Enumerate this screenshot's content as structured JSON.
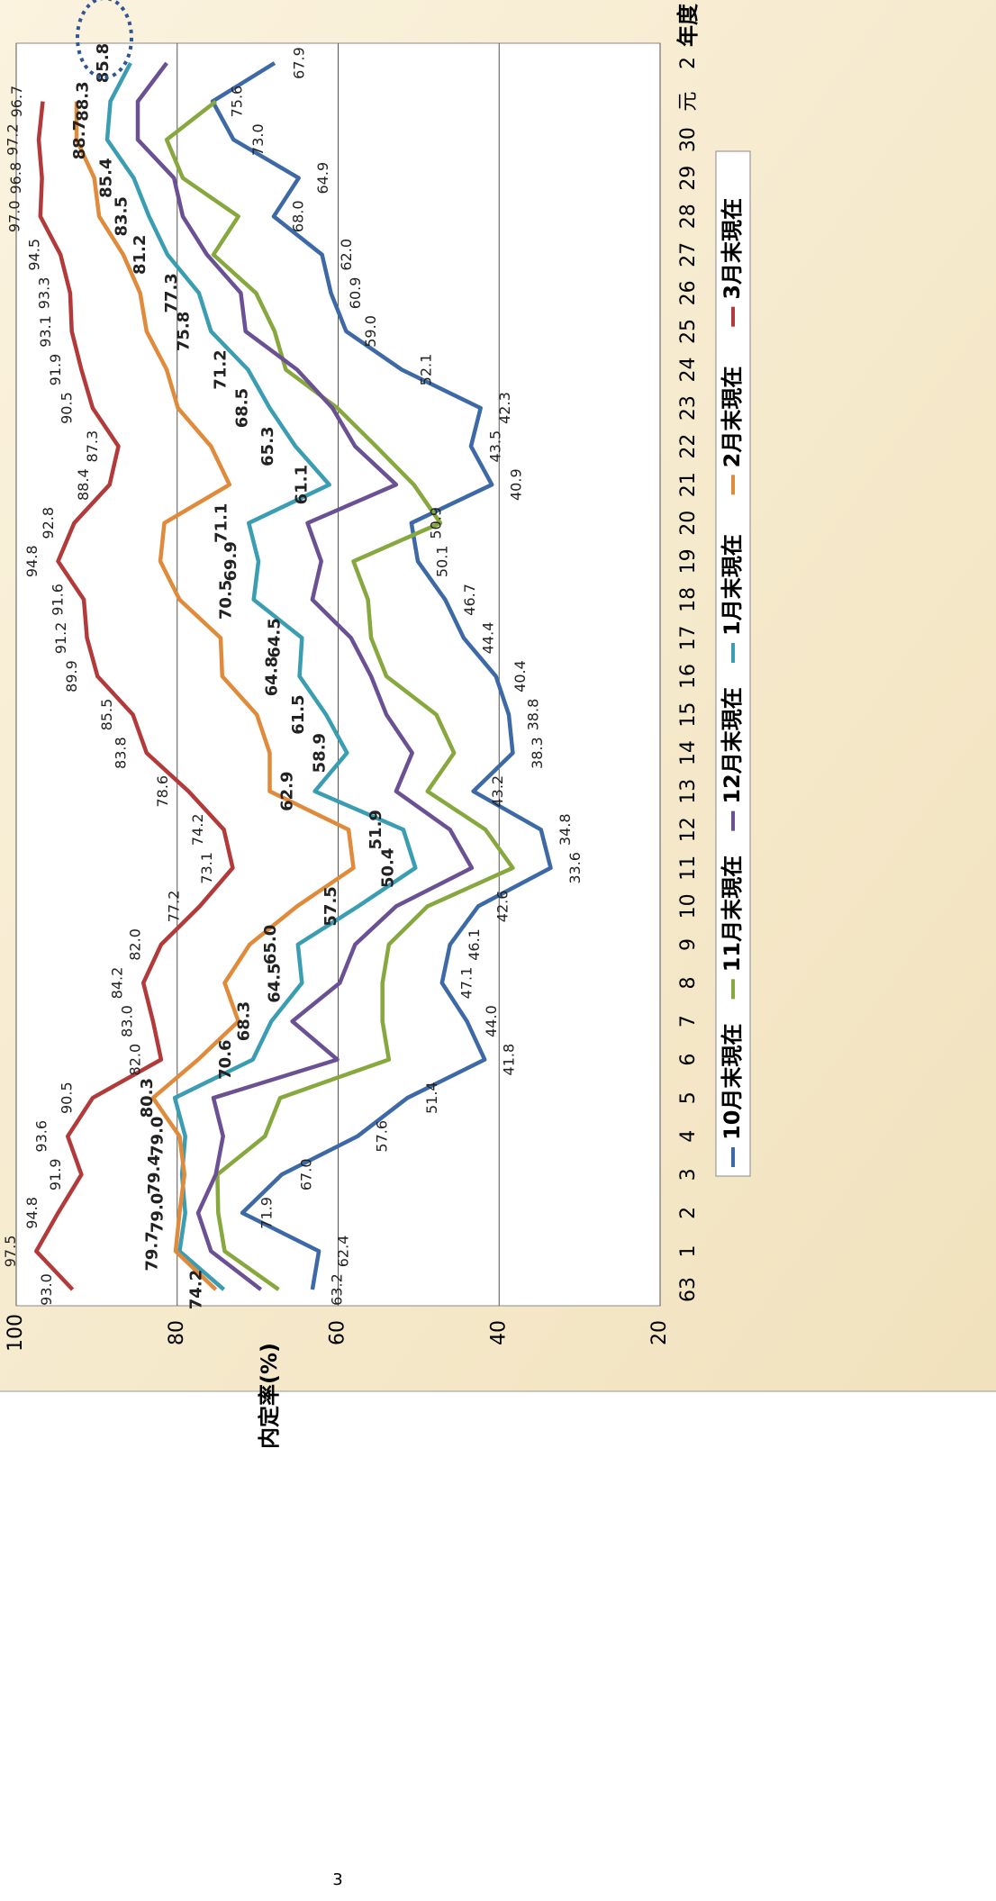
{
  "chart_data": {
    "type": "line",
    "y_label": "内定率(%)",
    "x_label": "年度",
    "page_number": "3",
    "categories": [
      "63",
      "1",
      "2",
      "3",
      "4",
      "5",
      "6",
      "7",
      "8",
      "9",
      "10",
      "11",
      "12",
      "13",
      "14",
      "15",
      "16",
      "17",
      "18",
      "19",
      "20",
      "21",
      "22",
      "23",
      "24",
      "25",
      "26",
      "27",
      "28",
      "29",
      "30",
      "元",
      "2"
    ],
    "ylim": [
      20,
      100
    ],
    "yticks": [
      20,
      40,
      60,
      80,
      100
    ],
    "grid": true,
    "legend": "right",
    "series": [
      {
        "name": "10月末現在",
        "color": "#3d6aa6",
        "values": [
          63.2,
          62.4,
          71.9,
          67.0,
          57.6,
          51.4,
          41.8,
          44.0,
          47.1,
          46.1,
          42.6,
          33.6,
          34.8,
          43.2,
          38.3,
          38.8,
          40.4,
          44.4,
          46.7,
          50.1,
          50.9,
          40.9,
          43.5,
          42.3,
          52.1,
          59.0,
          60.9,
          62.0,
          68.0,
          64.9,
          73.0,
          75.6,
          67.9
        ],
        "value_labels": [
          "63.2",
          "62.4",
          "71.9",
          "67.0",
          "57.6",
          "51.4",
          "41.8",
          "44.0",
          "47.1",
          "46.1",
          "42.6",
          "33.6",
          "34.8",
          "43.2",
          "38.3",
          "38.8",
          "40.4",
          "44.4",
          "46.7",
          "50.1",
          "50.9",
          "40.9",
          "43.5",
          "42.3",
          "52.1",
          "59.0",
          "60.9",
          "62.0",
          "68.0",
          "64.9",
          "73.0",
          "75.6",
          "67.9"
        ]
      },
      {
        "name": "11月末現在",
        "color": "#86a83e",
        "values": [
          67.4,
          74.1,
          74.9,
          75.0,
          69.1,
          67.2,
          53.7,
          54.5,
          54.5,
          53.7,
          48.9,
          38.3,
          41.7,
          48.9,
          45.6,
          47.8,
          54.0,
          55.9,
          56.3,
          58.1,
          47.3,
          50.6,
          55.3,
          60.1,
          66.5,
          67.9,
          70.2,
          75.5,
          72.4,
          79.3,
          81.3,
          75.2,
          null
        ]
      },
      {
        "name": "12月末現在",
        "color": "#6b5194",
        "values": [
          69.6,
          75.8,
          77.4,
          75.2,
          74.3,
          75.5,
          60.1,
          65.7,
          59.8,
          57.9,
          52.8,
          43.4,
          46.1,
          52.8,
          50.8,
          54.0,
          55.9,
          58.4,
          63.2,
          62.1,
          63.8,
          52.8,
          57.9,
          60.7,
          65.1,
          71.5,
          72.1,
          76.3,
          79.3,
          80.4,
          84.9,
          84.9,
          81.3
        ]
      },
      {
        "name": "1月末現在",
        "color": "#3b9db2",
        "values": [
          74.2,
          79.7,
          79.0,
          79.4,
          79.0,
          80.3,
          70.6,
          68.3,
          64.5,
          65.0,
          57.5,
          50.4,
          51.9,
          62.9,
          58.9,
          61.5,
          64.8,
          64.5,
          70.5,
          69.9,
          71.1,
          61.1,
          65.3,
          68.5,
          71.2,
          75.8,
          77.3,
          81.2,
          83.5,
          85.4,
          88.7,
          88.3,
          85.8
        ],
        "value_labels": [
          "74.2",
          "79.7",
          "79.0",
          "79.4",
          "79.0",
          "80.3",
          "70.6",
          "68.3",
          "64.5",
          "65.0",
          "57.5",
          "50.4",
          "51.9",
          "62.9",
          "58.9",
          "61.5",
          "64.8",
          "64.5",
          "70.5",
          "69.9",
          "71.1",
          "61.1",
          "65.3",
          "68.5",
          "71.2",
          "75.8",
          "77.3",
          "81.2",
          "83.5",
          "85.4",
          "88.7",
          "88.3",
          "85.8"
        ]
      },
      {
        "name": "2月末現在",
        "color": "#e08b3c",
        "values": [
          75.2,
          80.2,
          79.7,
          79.1,
          79.7,
          83.0,
          77.4,
          72.4,
          74.1,
          71.0,
          65.1,
          58.1,
          58.7,
          68.5,
          68.5,
          70.1,
          74.4,
          74.6,
          79.7,
          82.1,
          81.6,
          73.5,
          75.8,
          79.9,
          81.3,
          83.8,
          84.6,
          86.7,
          89.7,
          90.3,
          92.5,
          92.5,
          null
        ]
      },
      {
        "name": "3月末現在",
        "color": "#b33a3b",
        "values": [
          93.0,
          97.5,
          94.8,
          91.9,
          93.6,
          90.5,
          82.0,
          83.0,
          84.2,
          82.0,
          77.2,
          73.1,
          74.2,
          78.6,
          83.8,
          85.5,
          89.9,
          91.2,
          91.6,
          94.8,
          92.8,
          88.4,
          87.3,
          90.5,
          91.9,
          93.1,
          93.3,
          94.5,
          97.0,
          96.8,
          97.2,
          96.7,
          null
        ],
        "value_labels": [
          "93.0",
          "97.5",
          "94.8",
          "91.9",
          "93.6",
          "90.5",
          "82.0",
          "83.0",
          "84.2",
          "82.0",
          "77.2",
          "73.1",
          "74.2",
          "78.6",
          "83.8",
          "85.5",
          "89.9",
          "91.2",
          "91.6",
          "94.8",
          "92.8",
          "88.4",
          "87.3",
          "90.5",
          "91.9",
          "93.1",
          "93.3",
          "94.5",
          "97.0",
          "96.8",
          "97.2",
          "96.7",
          null
        ]
      }
    ]
  }
}
